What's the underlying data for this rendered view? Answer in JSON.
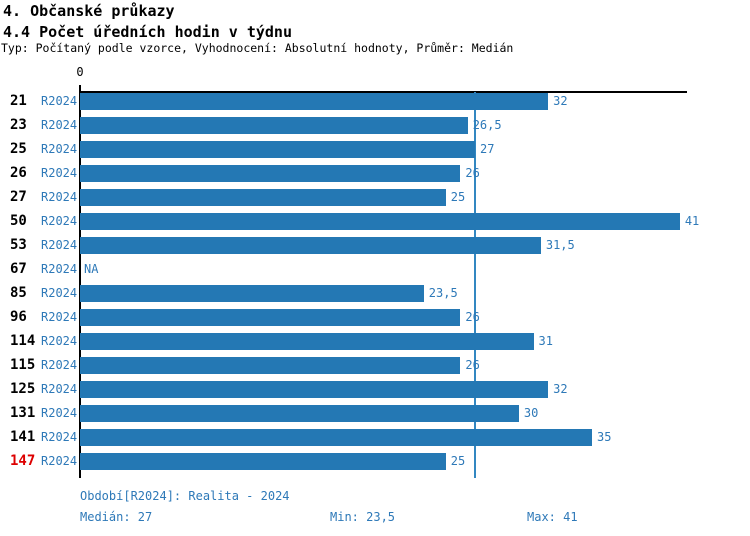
{
  "header": {
    "title1": "4. Občanské průkazy",
    "title2": "4.4 Počet úředních hodin v týdnu",
    "subtitle": "Typ: Počítaný podle vzorce, Vyhodnocení: Absolutní hodnoty, Průměr: Medián"
  },
  "chart_data": {
    "type": "bar",
    "orientation": "horizontal",
    "title": "4.4 Počet úředních hodin v týdnu",
    "axis_zero_label": "0",
    "categories": [
      "21",
      "23",
      "25",
      "26",
      "27",
      "50",
      "53",
      "67",
      "85",
      "96",
      "114",
      "115",
      "125",
      "131",
      "141",
      "147"
    ],
    "series_label": "R2024",
    "values": [
      32,
      26.5,
      27,
      26,
      25,
      41,
      31.5,
      null,
      23.5,
      26,
      31,
      26,
      32,
      30,
      35,
      25
    ],
    "value_labels": [
      "32",
      "26,5",
      "27",
      "26",
      "25",
      "41",
      "31,5",
      "NA",
      "23,5",
      "26",
      "31",
      "26",
      "32",
      "30",
      "35",
      "25"
    ],
    "na_label": "NA",
    "median_value": 27,
    "xlim": [
      0,
      41.5
    ],
    "grid": false,
    "highlighted_category": "147",
    "colors": {
      "bar": "#2478b4",
      "value_text": "#2e79b8",
      "category_text": "#000000",
      "highlight_text": "#dd0000",
      "median_line": "#3287c1",
      "axis": "#000000"
    }
  },
  "footer": {
    "period": "Období[R2024]: Realita - 2024",
    "median": "Medián: 27",
    "min": "Min: 23,5",
    "max": "Max: 41"
  }
}
